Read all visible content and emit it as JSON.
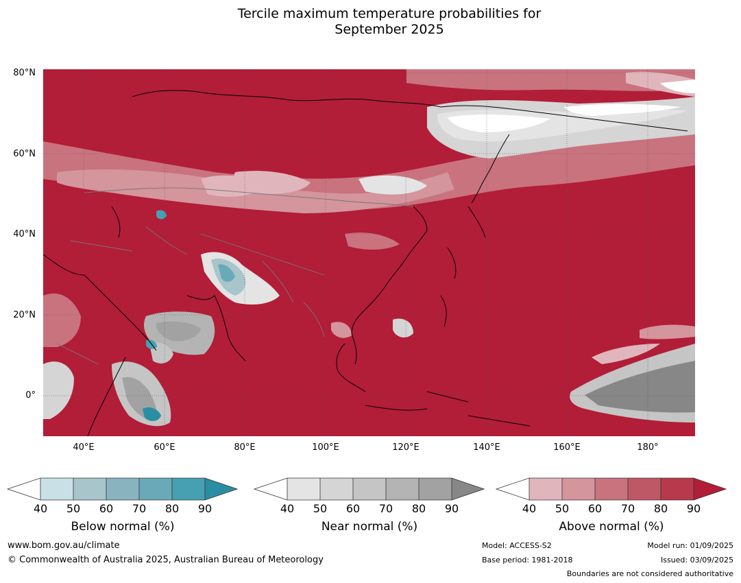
{
  "title_line1": "Tercile maximum temperature probabilities for",
  "title_line2": "September 2025",
  "lat_labels": [
    "80°N",
    "60°N",
    "40°N",
    "20°N",
    "0°"
  ],
  "lon_labels": [
    "40°E",
    "60°E",
    "80°E",
    "100°E",
    "120°E",
    "140°E",
    "160°E",
    "180°"
  ],
  "legends": [
    {
      "label": "Below normal (%)",
      "ticks": [
        "40",
        "50",
        "60",
        "70",
        "80",
        "90"
      ],
      "colors": [
        "#ffffff",
        "#c8e0e6",
        "#a7c5cb",
        "#89b3be",
        "#6aaab8",
        "#46a0b1",
        "#2a8ea3"
      ]
    },
    {
      "label": "Near normal (%)",
      "ticks": [
        "40",
        "50",
        "60",
        "70",
        "80",
        "90"
      ],
      "colors": [
        "#ffffff",
        "#e4e4e4",
        "#d5d5d5",
        "#c5c5c5",
        "#b4b4b4",
        "#a2a2a2",
        "#878787"
      ]
    },
    {
      "label": "Above normal (%)",
      "ticks": [
        "40",
        "50",
        "60",
        "70",
        "80",
        "90"
      ],
      "colors": [
        "#ffffff",
        "#e0b6bc",
        "#d4959d",
        "#c9737f",
        "#be5867",
        "#b7394b",
        "#b21d38"
      ]
    }
  ],
  "footer": {
    "website": "www.bom.gov.au/climate",
    "copyright": "© Commonwealth of Australia 2025, Australian Bureau of Meteorology",
    "model": "Model: ACCESS-S2",
    "base_period": "Base period: 1981-2018",
    "model_run": "Model run: 01/09/2025",
    "issued": "Issued: 03/09/2025",
    "boundaries": "Boundaries are not considered authoritative"
  }
}
